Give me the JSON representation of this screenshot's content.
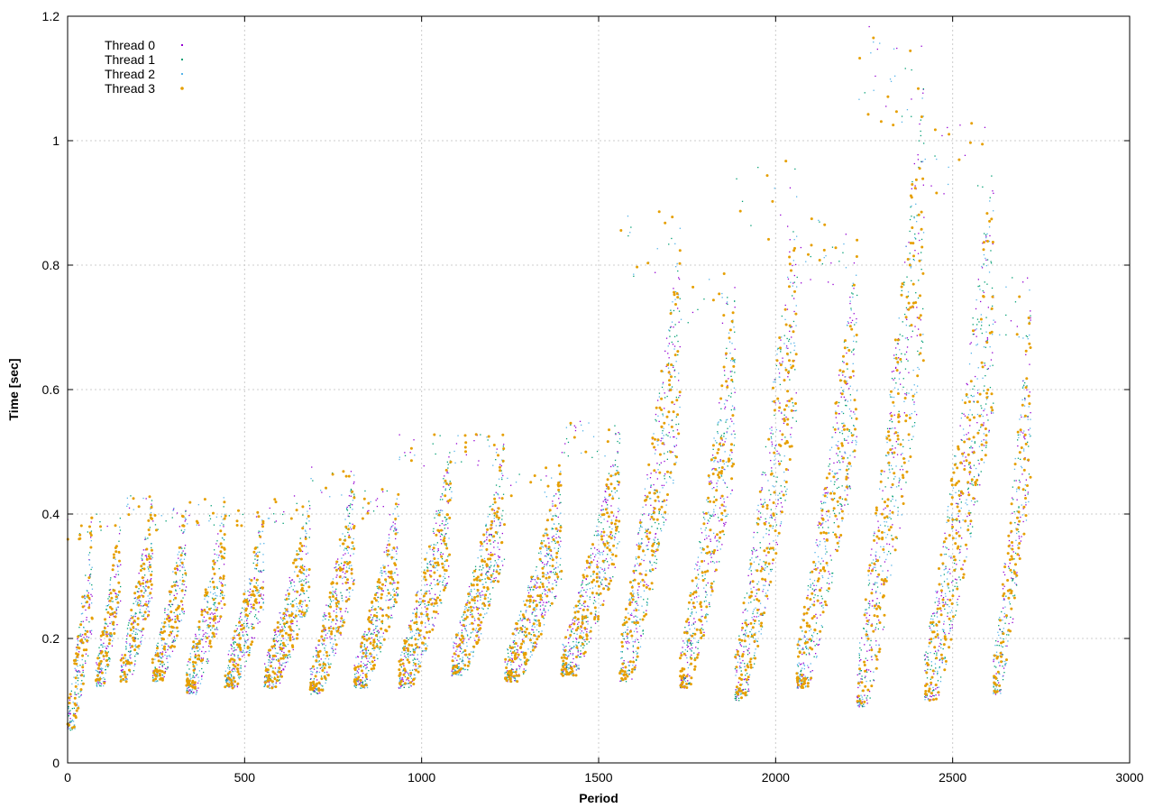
{
  "chart_data": {
    "type": "scatter",
    "title": "",
    "xlabel": "Period",
    "ylabel": "Time [sec]",
    "xlim": [
      0,
      3000
    ],
    "ylim": [
      0,
      1.2
    ],
    "xticks": [
      0,
      500,
      1000,
      1500,
      2000,
      2500,
      3000
    ],
    "yticks": [
      0,
      0.2,
      0.4,
      0.6,
      0.8,
      1,
      1.2
    ],
    "xtick_labels": [
      "0",
      "500",
      "1000",
      "1500",
      "2000",
      "2500",
      "3000"
    ],
    "ytick_labels": [
      "0",
      "0.2",
      "0.4",
      "0.6",
      "0.8",
      "1",
      "1.2"
    ],
    "grid": true,
    "legend_position": "top-left",
    "points_per_series_approx": 2720,
    "pattern": "sawtooth cycles of ~110 periods; each cycle rises from a minimum to a maximum",
    "cycles": [
      {
        "start": 0,
        "end": 70,
        "min": 0.05,
        "max": 0.41
      },
      {
        "start": 80,
        "end": 150,
        "min": 0.12,
        "max": 0.41
      },
      {
        "start": 150,
        "end": 240,
        "min": 0.13,
        "max": 0.43
      },
      {
        "start": 240,
        "end": 335,
        "min": 0.13,
        "max": 0.41
      },
      {
        "start": 335,
        "end": 445,
        "min": 0.11,
        "max": 0.43
      },
      {
        "start": 445,
        "end": 555,
        "min": 0.12,
        "max": 0.41
      },
      {
        "start": 555,
        "end": 685,
        "min": 0.12,
        "max": 0.43
      },
      {
        "start": 685,
        "end": 810,
        "min": 0.11,
        "max": 0.48
      },
      {
        "start": 810,
        "end": 935,
        "min": 0.12,
        "max": 0.44
      },
      {
        "start": 935,
        "end": 1085,
        "min": 0.12,
        "max": 0.53
      },
      {
        "start": 1085,
        "end": 1235,
        "min": 0.14,
        "max": 0.53
      },
      {
        "start": 1235,
        "end": 1395,
        "min": 0.13,
        "max": 0.48
      },
      {
        "start": 1395,
        "end": 1560,
        "min": 0.14,
        "max": 0.55
      },
      {
        "start": 1560,
        "end": 1730,
        "min": 0.13,
        "max": 0.89
      },
      {
        "start": 1730,
        "end": 1885,
        "min": 0.12,
        "max": 0.8
      },
      {
        "start": 1885,
        "end": 2060,
        "min": 0.1,
        "max": 0.97
      },
      {
        "start": 2060,
        "end": 2230,
        "min": 0.12,
        "max": 0.88
      },
      {
        "start": 2230,
        "end": 2420,
        "min": 0.09,
        "max": 1.19
      },
      {
        "start": 2420,
        "end": 2615,
        "min": 0.1,
        "max": 1.03
      },
      {
        "start": 2615,
        "end": 2720,
        "min": 0.11,
        "max": 0.78
      }
    ],
    "series": [
      {
        "name": "Thread 0",
        "color": "#9400d3",
        "marker": "dot"
      },
      {
        "name": "Thread 1",
        "color": "#009e73",
        "marker": "dot"
      },
      {
        "name": "Thread 2",
        "color": "#56b4e9",
        "marker": "dot"
      },
      {
        "name": "Thread 3",
        "color": "#e69f00",
        "marker": "small-circle"
      }
    ]
  }
}
